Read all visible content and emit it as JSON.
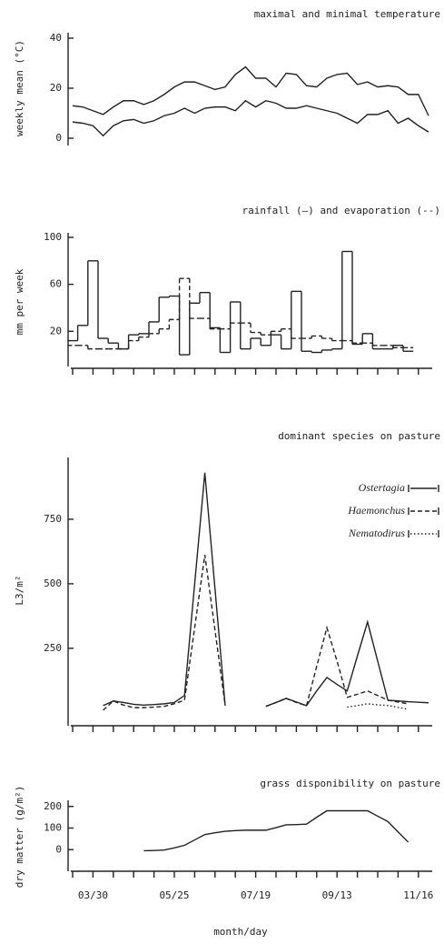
{
  "chart_data": [
    {
      "type": "line",
      "title": "maximal and minimal temperature",
      "ylabel": "weekly mean (°C)",
      "ylim": [
        0,
        40
      ],
      "yticks": [
        0,
        20,
        40
      ],
      "series": [
        {
          "name": "maximal",
          "color": "#222222",
          "dash": "solid",
          "values": [
            13,
            12.5,
            11,
            9.5,
            12.5,
            15,
            15,
            13.5,
            15,
            17.5,
            20.5,
            22.5,
            22.5,
            21,
            19.5,
            20.5,
            25.5,
            28.5,
            24,
            24,
            20.5,
            26,
            25.5,
            21,
            20.5,
            24,
            25.5,
            26,
            21.5,
            22.5,
            20.5,
            21,
            20.5,
            17.5,
            17.5,
            9
          ]
        },
        {
          "name": "minimal",
          "color": "#222222",
          "dash": "solid",
          "values": [
            6.5,
            6,
            5,
            1,
            5,
            7,
            7.5,
            6,
            7,
            9,
            10,
            12,
            10,
            12,
            12.5,
            12.5,
            11,
            15,
            12.5,
            15,
            14,
            12,
            12,
            13,
            12,
            11,
            10,
            8,
            6,
            9.5,
            9.5,
            11,
            6,
            8,
            5,
            2.5
          ]
        }
      ]
    },
    {
      "type": "step",
      "title": "rainfall (—) and evaporation (--)",
      "ylabel": "mm per week",
      "ylim": [
        -10,
        100
      ],
      "yticks": [
        20,
        60,
        100
      ],
      "series": [
        {
          "name": "rainfall",
          "color": "#222222",
          "dash": "solid",
          "values": [
            12,
            25,
            80,
            14,
            10,
            5,
            17,
            18,
            28,
            49,
            50,
            0,
            44,
            53,
            23,
            2,
            45,
            5,
            14,
            8,
            17,
            5,
            54,
            3,
            2,
            4,
            5,
            88,
            9,
            18,
            5,
            5,
            8,
            3,
            null,
            null
          ]
        },
        {
          "name": "evaporation",
          "color": "#222222",
          "dash": "dashed",
          "values": [
            8,
            8,
            5,
            5,
            5,
            5,
            12,
            15,
            18,
            22,
            30,
            65,
            31,
            31,
            22,
            22,
            27,
            27,
            19,
            17,
            20,
            22,
            14,
            14,
            16,
            14,
            12,
            12,
            10,
            10,
            8,
            8,
            6,
            6,
            null,
            null
          ]
        }
      ]
    },
    {
      "type": "line",
      "title": "dominant species on pasture",
      "ylabel": "L3/m²",
      "ylim": [
        -50,
        1000
      ],
      "yticks": [
        250,
        500,
        750
      ],
      "legend": "upper right",
      "series": [
        {
          "name": "Ostertagia",
          "color": "#222222",
          "dash": "solid",
          "values": [
            null,
            null,
            null,
            28,
            46,
            40,
            33,
            30,
            32,
            35,
            40,
            67,
            500,
            930,
            480,
            28,
            null,
            null,
            null,
            25,
            40,
            56,
            42,
            28,
            85,
            137,
            110,
            85,
            220,
            352,
            200,
            49,
            46,
            43,
            41,
            39
          ]
        },
        {
          "name": "Haemonchus",
          "color": "#222222",
          "dash": "dashed",
          "values": [
            null,
            null,
            null,
            10,
            46,
            30,
            20,
            20,
            22,
            25,
            35,
            49,
            330,
            612,
            320,
            28,
            null,
            null,
            null,
            25,
            40,
            56,
            40,
            28,
            180,
            330,
            200,
            60,
            72,
            85,
            67,
            49,
            42,
            35,
            null,
            null
          ]
        },
        {
          "name": "Nematodirus",
          "color": "#222222",
          "dash": "dotted",
          "values": [
            null,
            null,
            null,
            null,
            null,
            null,
            null,
            null,
            null,
            null,
            null,
            null,
            null,
            null,
            null,
            null,
            null,
            null,
            null,
            null,
            null,
            null,
            null,
            null,
            null,
            null,
            null,
            22,
            28,
            35,
            31,
            28,
            21,
            14,
            null,
            null
          ]
        }
      ]
    },
    {
      "type": "line",
      "title": "grass disponibility on pasture",
      "ylabel": "dry matter (g/m²)",
      "xlabel": "month/day",
      "ylim": [
        -100,
        220
      ],
      "yticks": [
        0,
        100,
        200
      ],
      "categories": [
        null,
        null,
        "03/30",
        null,
        null,
        null,
        null,
        null,
        null,
        null,
        "05/25",
        null,
        null,
        null,
        null,
        null,
        null,
        null,
        "07/19",
        null,
        null,
        null,
        null,
        null,
        null,
        null,
        "09/13",
        null,
        null,
        null,
        null,
        null,
        null,
        null,
        "11/16",
        null
      ],
      "series": [
        {
          "name": "dry matter",
          "color": "#222222",
          "dash": "solid",
          "values": [
            null,
            null,
            null,
            null,
            null,
            null,
            null,
            -5,
            -4,
            -2,
            8,
            20,
            45,
            70,
            78,
            85,
            88,
            90,
            90,
            90,
            102,
            115,
            116,
            118,
            150,
            180,
            180,
            180,
            180,
            180,
            155,
            130,
            82,
            35,
            null,
            null
          ]
        }
      ]
    }
  ]
}
